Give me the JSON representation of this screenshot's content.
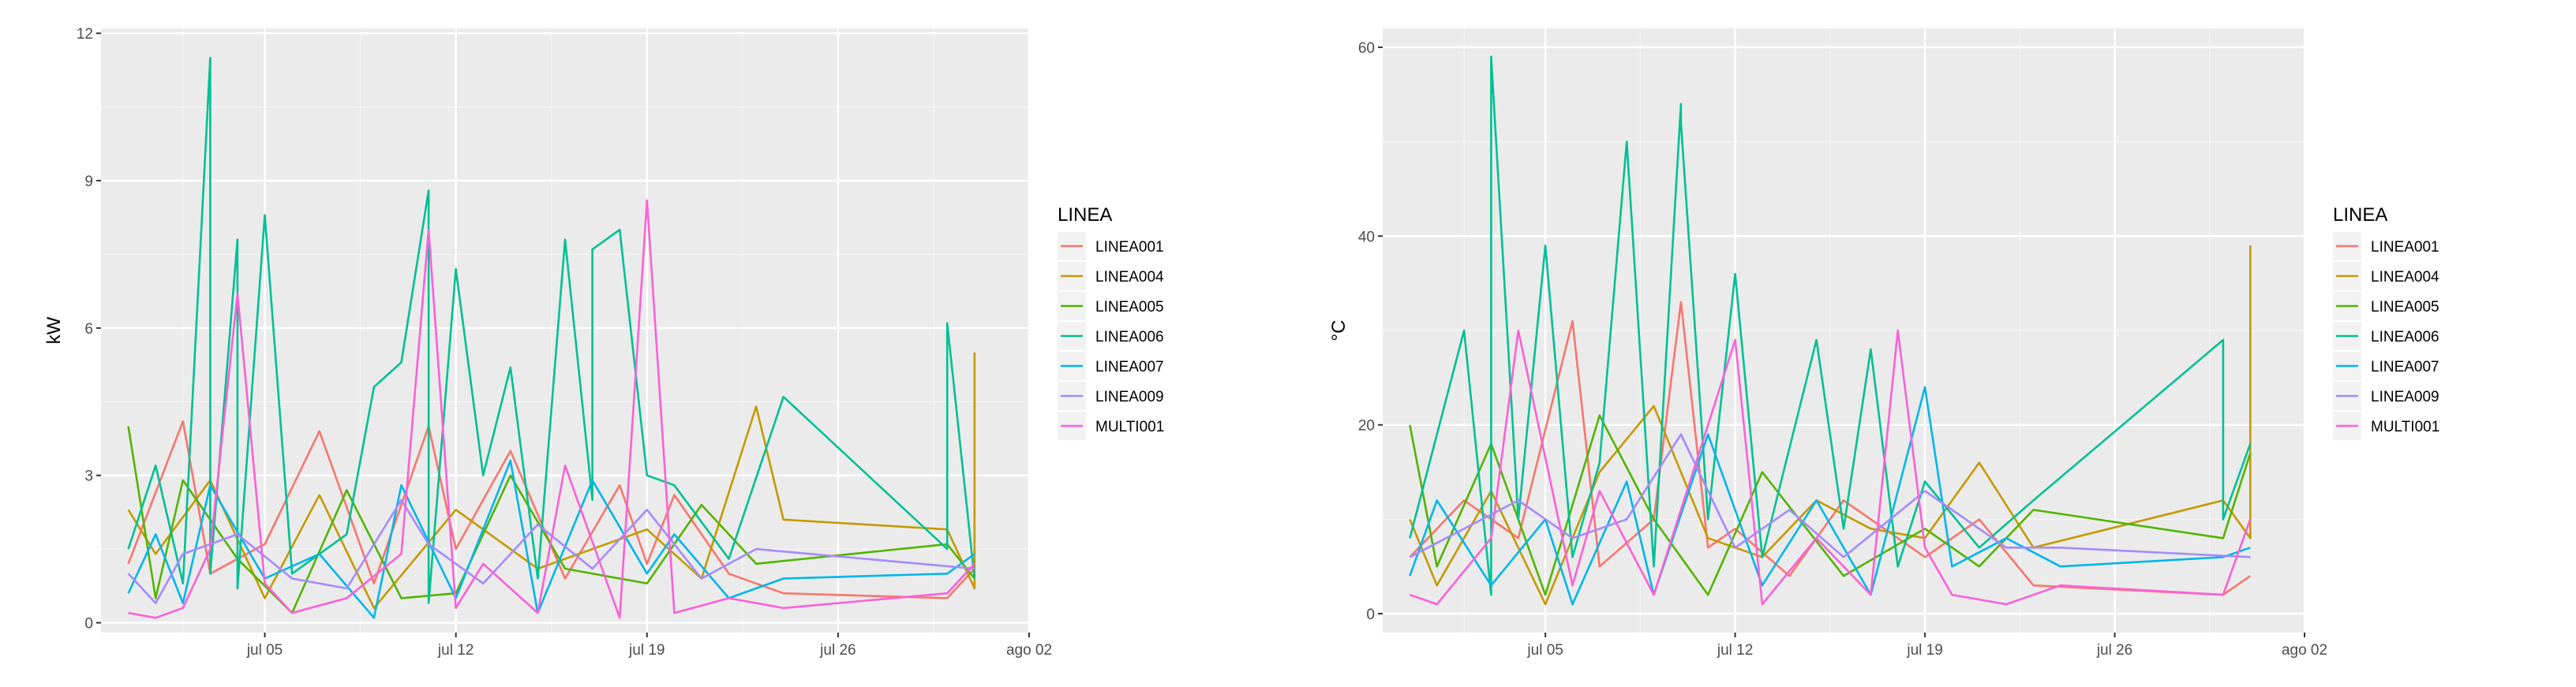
{
  "chart_data": [
    {
      "type": "line",
      "ylabel": "kW",
      "x_ticks": [
        "jul 05",
        "jul 12",
        "jul 19",
        "jul 26",
        "ago 02"
      ],
      "x_tick_dates": [
        "2023-07-05",
        "2023-07-12",
        "2023-07-19",
        "2023-07-26",
        "2023-08-02"
      ],
      "xlim": [
        "2023-06-29",
        "2023-08-02"
      ],
      "y_ticks": [
        "0",
        "3",
        "6",
        "9",
        "12"
      ],
      "ylim": [
        -0.2,
        12.1
      ],
      "legend_title": "LINEA",
      "grid": true,
      "legend_position": "right",
      "series": [
        {
          "name": "LINEA001",
          "color": "#F8766D",
          "x": [
            "2023-06-30",
            "2023-07-02",
            "2023-07-03",
            "2023-07-05",
            "2023-07-07",
            "2023-07-09",
            "2023-07-11",
            "2023-07-12",
            "2023-07-14",
            "2023-07-16",
            "2023-07-18",
            "2023-07-19",
            "2023-07-20",
            "2023-07-22",
            "2023-07-24",
            "2023-07-30",
            "2023-07-31"
          ],
          "values": [
            1.2,
            4.1,
            1.0,
            1.6,
            3.9,
            0.8,
            4.0,
            1.5,
            3.5,
            0.9,
            2.8,
            1.2,
            2.6,
            1.0,
            0.6,
            0.5,
            1.1
          ]
        },
        {
          "name": "LINEA004",
          "color": "#C49A00",
          "x": [
            "2023-06-30",
            "2023-07-01",
            "2023-07-03",
            "2023-07-05",
            "2023-07-07",
            "2023-07-09",
            "2023-07-12",
            "2023-07-15",
            "2023-07-19",
            "2023-07-21",
            "2023-07-23",
            "2023-07-24",
            "2023-07-30",
            "2023-07-31",
            "2023-07-31"
          ],
          "values": [
            2.3,
            1.4,
            2.9,
            0.5,
            2.6,
            0.3,
            2.3,
            1.1,
            1.9,
            0.9,
            4.4,
            2.1,
            1.9,
            0.7,
            5.5
          ]
        },
        {
          "name": "LINEA005",
          "color": "#53B400",
          "x": [
            "2023-06-30",
            "2023-07-01",
            "2023-07-02",
            "2023-07-04",
            "2023-07-06",
            "2023-07-08",
            "2023-07-10",
            "2023-07-12",
            "2023-07-14",
            "2023-07-16",
            "2023-07-19",
            "2023-07-21",
            "2023-07-23",
            "2023-07-30",
            "2023-07-31"
          ],
          "values": [
            4.0,
            0.5,
            2.9,
            1.3,
            0.2,
            2.7,
            0.5,
            0.6,
            3.0,
            1.1,
            0.8,
            2.4,
            1.2,
            1.6,
            0.9
          ]
        },
        {
          "name": "LINEA006",
          "color": "#00C094",
          "x": [
            "2023-06-30",
            "2023-07-01",
            "2023-07-02",
            "2023-07-03",
            "2023-07-03",
            "2023-07-04",
            "2023-07-04",
            "2023-07-05",
            "2023-07-06",
            "2023-07-08",
            "2023-07-09",
            "2023-07-10",
            "2023-07-11",
            "2023-07-11",
            "2023-07-12",
            "2023-07-13",
            "2023-07-14",
            "2023-07-15",
            "2023-07-16",
            "2023-07-17",
            "2023-07-17",
            "2023-07-18",
            "2023-07-19",
            "2023-07-20",
            "2023-07-22",
            "2023-07-24",
            "2023-07-30",
            "2023-07-30",
            "2023-07-31"
          ],
          "values": [
            1.5,
            3.2,
            0.8,
            11.5,
            1.0,
            7.8,
            0.7,
            8.3,
            1.0,
            1.8,
            4.8,
            5.3,
            8.8,
            0.4,
            7.2,
            3.0,
            5.2,
            0.9,
            7.8,
            2.5,
            7.6,
            8.0,
            3.0,
            2.8,
            1.3,
            4.6,
            1.5,
            6.1,
            0.9
          ]
        },
        {
          "name": "LINEA007",
          "color": "#00B6EB",
          "x": [
            "2023-06-30",
            "2023-07-01",
            "2023-07-02",
            "2023-07-03",
            "2023-07-05",
            "2023-07-07",
            "2023-07-09",
            "2023-07-10",
            "2023-07-12",
            "2023-07-14",
            "2023-07-15",
            "2023-07-17",
            "2023-07-19",
            "2023-07-20",
            "2023-07-22",
            "2023-07-24",
            "2023-07-30",
            "2023-07-31"
          ],
          "values": [
            0.6,
            1.8,
            0.4,
            2.8,
            0.9,
            1.4,
            0.1,
            2.8,
            0.5,
            3.3,
            0.2,
            2.9,
            1.0,
            1.8,
            0.5,
            0.9,
            1.0,
            1.4
          ]
        },
        {
          "name": "LINEA009",
          "color": "#A58AFF",
          "x": [
            "2023-06-30",
            "2023-07-01",
            "2023-07-02",
            "2023-07-04",
            "2023-07-06",
            "2023-07-08",
            "2023-07-10",
            "2023-07-11",
            "2023-07-13",
            "2023-07-15",
            "2023-07-17",
            "2023-07-19",
            "2023-07-21",
            "2023-07-23",
            "2023-07-31"
          ],
          "values": [
            1.0,
            0.4,
            1.4,
            1.8,
            0.9,
            0.7,
            2.5,
            1.6,
            0.8,
            2.0,
            1.1,
            2.3,
            0.9,
            1.5,
            1.1
          ]
        },
        {
          "name": "MULTI001",
          "color": "#FB61D7",
          "x": [
            "2023-06-30",
            "2023-07-01",
            "2023-07-02",
            "2023-07-03",
            "2023-07-04",
            "2023-07-05",
            "2023-07-06",
            "2023-07-08",
            "2023-07-10",
            "2023-07-11",
            "2023-07-12",
            "2023-07-13",
            "2023-07-15",
            "2023-07-16",
            "2023-07-18",
            "2023-07-19",
            "2023-07-20",
            "2023-07-22",
            "2023-07-24",
            "2023-07-30",
            "2023-07-31"
          ],
          "values": [
            0.2,
            0.1,
            0.3,
            1.5,
            6.7,
            0.8,
            0.2,
            0.5,
            1.4,
            8.0,
            0.3,
            1.2,
            0.2,
            3.2,
            0.1,
            8.6,
            0.2,
            0.5,
            0.3,
            0.6,
            1.2
          ]
        }
      ]
    },
    {
      "type": "line",
      "ylabel": "°C",
      "x_ticks": [
        "jul 05",
        "jul 12",
        "jul 19",
        "jul 26",
        "ago 02"
      ],
      "x_tick_dates": [
        "2023-07-05",
        "2023-07-12",
        "2023-07-19",
        "2023-07-26",
        "2023-08-02"
      ],
      "xlim": [
        "2023-06-29",
        "2023-08-02"
      ],
      "y_ticks": [
        "0",
        "20",
        "40",
        "60"
      ],
      "ylim": [
        -2,
        62
      ],
      "legend_title": "LINEA",
      "grid": true,
      "legend_position": "right",
      "series": [
        {
          "name": "LINEA001",
          "color": "#F8766D",
          "x": [
            "2023-06-30",
            "2023-07-02",
            "2023-07-04",
            "2023-07-06",
            "2023-07-07",
            "2023-07-09",
            "2023-07-10",
            "2023-07-11",
            "2023-07-12",
            "2023-07-14",
            "2023-07-16",
            "2023-07-19",
            "2023-07-21",
            "2023-07-23",
            "2023-07-30",
            "2023-07-31"
          ],
          "values": [
            6,
            12,
            8,
            31,
            5,
            10,
            33,
            7,
            9,
            4,
            12,
            6,
            10,
            3,
            2,
            4
          ]
        },
        {
          "name": "LINEA004",
          "color": "#C49A00",
          "x": [
            "2023-06-30",
            "2023-07-01",
            "2023-07-03",
            "2023-07-05",
            "2023-07-07",
            "2023-07-09",
            "2023-07-11",
            "2023-07-13",
            "2023-07-15",
            "2023-07-17",
            "2023-07-19",
            "2023-07-21",
            "2023-07-23",
            "2023-07-30",
            "2023-07-31",
            "2023-07-31"
          ],
          "values": [
            10,
            3,
            13,
            1,
            15,
            22,
            8,
            6,
            12,
            9,
            8,
            16,
            7,
            12,
            8,
            39
          ]
        },
        {
          "name": "LINEA005",
          "color": "#53B400",
          "x": [
            "2023-06-30",
            "2023-07-01",
            "2023-07-03",
            "2023-07-05",
            "2023-07-07",
            "2023-07-09",
            "2023-07-11",
            "2023-07-13",
            "2023-07-16",
            "2023-07-19",
            "2023-07-21",
            "2023-07-23",
            "2023-07-30",
            "2023-07-31"
          ],
          "values": [
            20,
            5,
            18,
            2,
            21,
            10,
            2,
            15,
            4,
            9,
            5,
            11,
            8,
            17
          ]
        },
        {
          "name": "LINEA006",
          "color": "#00C094",
          "x": [
            "2023-06-30",
            "2023-07-02",
            "2023-07-03",
            "2023-07-03",
            "2023-07-04",
            "2023-07-05",
            "2023-07-06",
            "2023-07-07",
            "2023-07-08",
            "2023-07-09",
            "2023-07-10",
            "2023-07-10",
            "2023-07-11",
            "2023-07-12",
            "2023-07-13",
            "2023-07-15",
            "2023-07-16",
            "2023-07-17",
            "2023-07-18",
            "2023-07-19",
            "2023-07-21",
            "2023-07-23",
            "2023-07-30",
            "2023-07-30",
            "2023-07-31"
          ],
          "values": [
            8,
            30,
            2,
            59,
            10,
            39,
            6,
            16,
            50,
            5,
            54,
            52,
            10,
            36,
            6,
            29,
            9,
            28,
            5,
            14,
            7,
            12,
            29,
            10,
            18
          ]
        },
        {
          "name": "LINEA007",
          "color": "#00B6EB",
          "x": [
            "2023-06-30",
            "2023-07-01",
            "2023-07-03",
            "2023-07-05",
            "2023-07-06",
            "2023-07-08",
            "2023-07-09",
            "2023-07-11",
            "2023-07-13",
            "2023-07-15",
            "2023-07-17",
            "2023-07-19",
            "2023-07-20",
            "2023-07-22",
            "2023-07-24",
            "2023-07-30",
            "2023-07-31"
          ],
          "values": [
            4,
            12,
            3,
            10,
            1,
            14,
            2,
            19,
            3,
            12,
            2,
            24,
            5,
            8,
            5,
            6,
            7
          ]
        },
        {
          "name": "LINEA009",
          "color": "#A58AFF",
          "x": [
            "2023-06-30",
            "2023-07-02",
            "2023-07-04",
            "2023-07-06",
            "2023-07-08",
            "2023-07-10",
            "2023-07-12",
            "2023-07-14",
            "2023-07-16",
            "2023-07-19",
            "2023-07-22",
            "2023-07-24",
            "2023-07-31"
          ],
          "values": [
            6,
            9,
            12,
            8,
            10,
            19,
            7,
            11,
            6,
            13,
            7,
            7,
            6
          ]
        },
        {
          "name": "MULTI001",
          "color": "#FB61D7",
          "x": [
            "2023-06-30",
            "2023-07-01",
            "2023-07-03",
            "2023-07-04",
            "2023-07-06",
            "2023-07-07",
            "2023-07-09",
            "2023-07-12",
            "2023-07-13",
            "2023-07-15",
            "2023-07-17",
            "2023-07-18",
            "2023-07-19",
            "2023-07-20",
            "2023-07-22",
            "2023-07-24",
            "2023-07-30",
            "2023-07-31"
          ],
          "values": [
            2,
            1,
            8,
            30,
            3,
            13,
            2,
            29,
            1,
            8,
            2,
            30,
            7,
            2,
            1,
            3,
            2,
            10
          ]
        }
      ]
    }
  ]
}
